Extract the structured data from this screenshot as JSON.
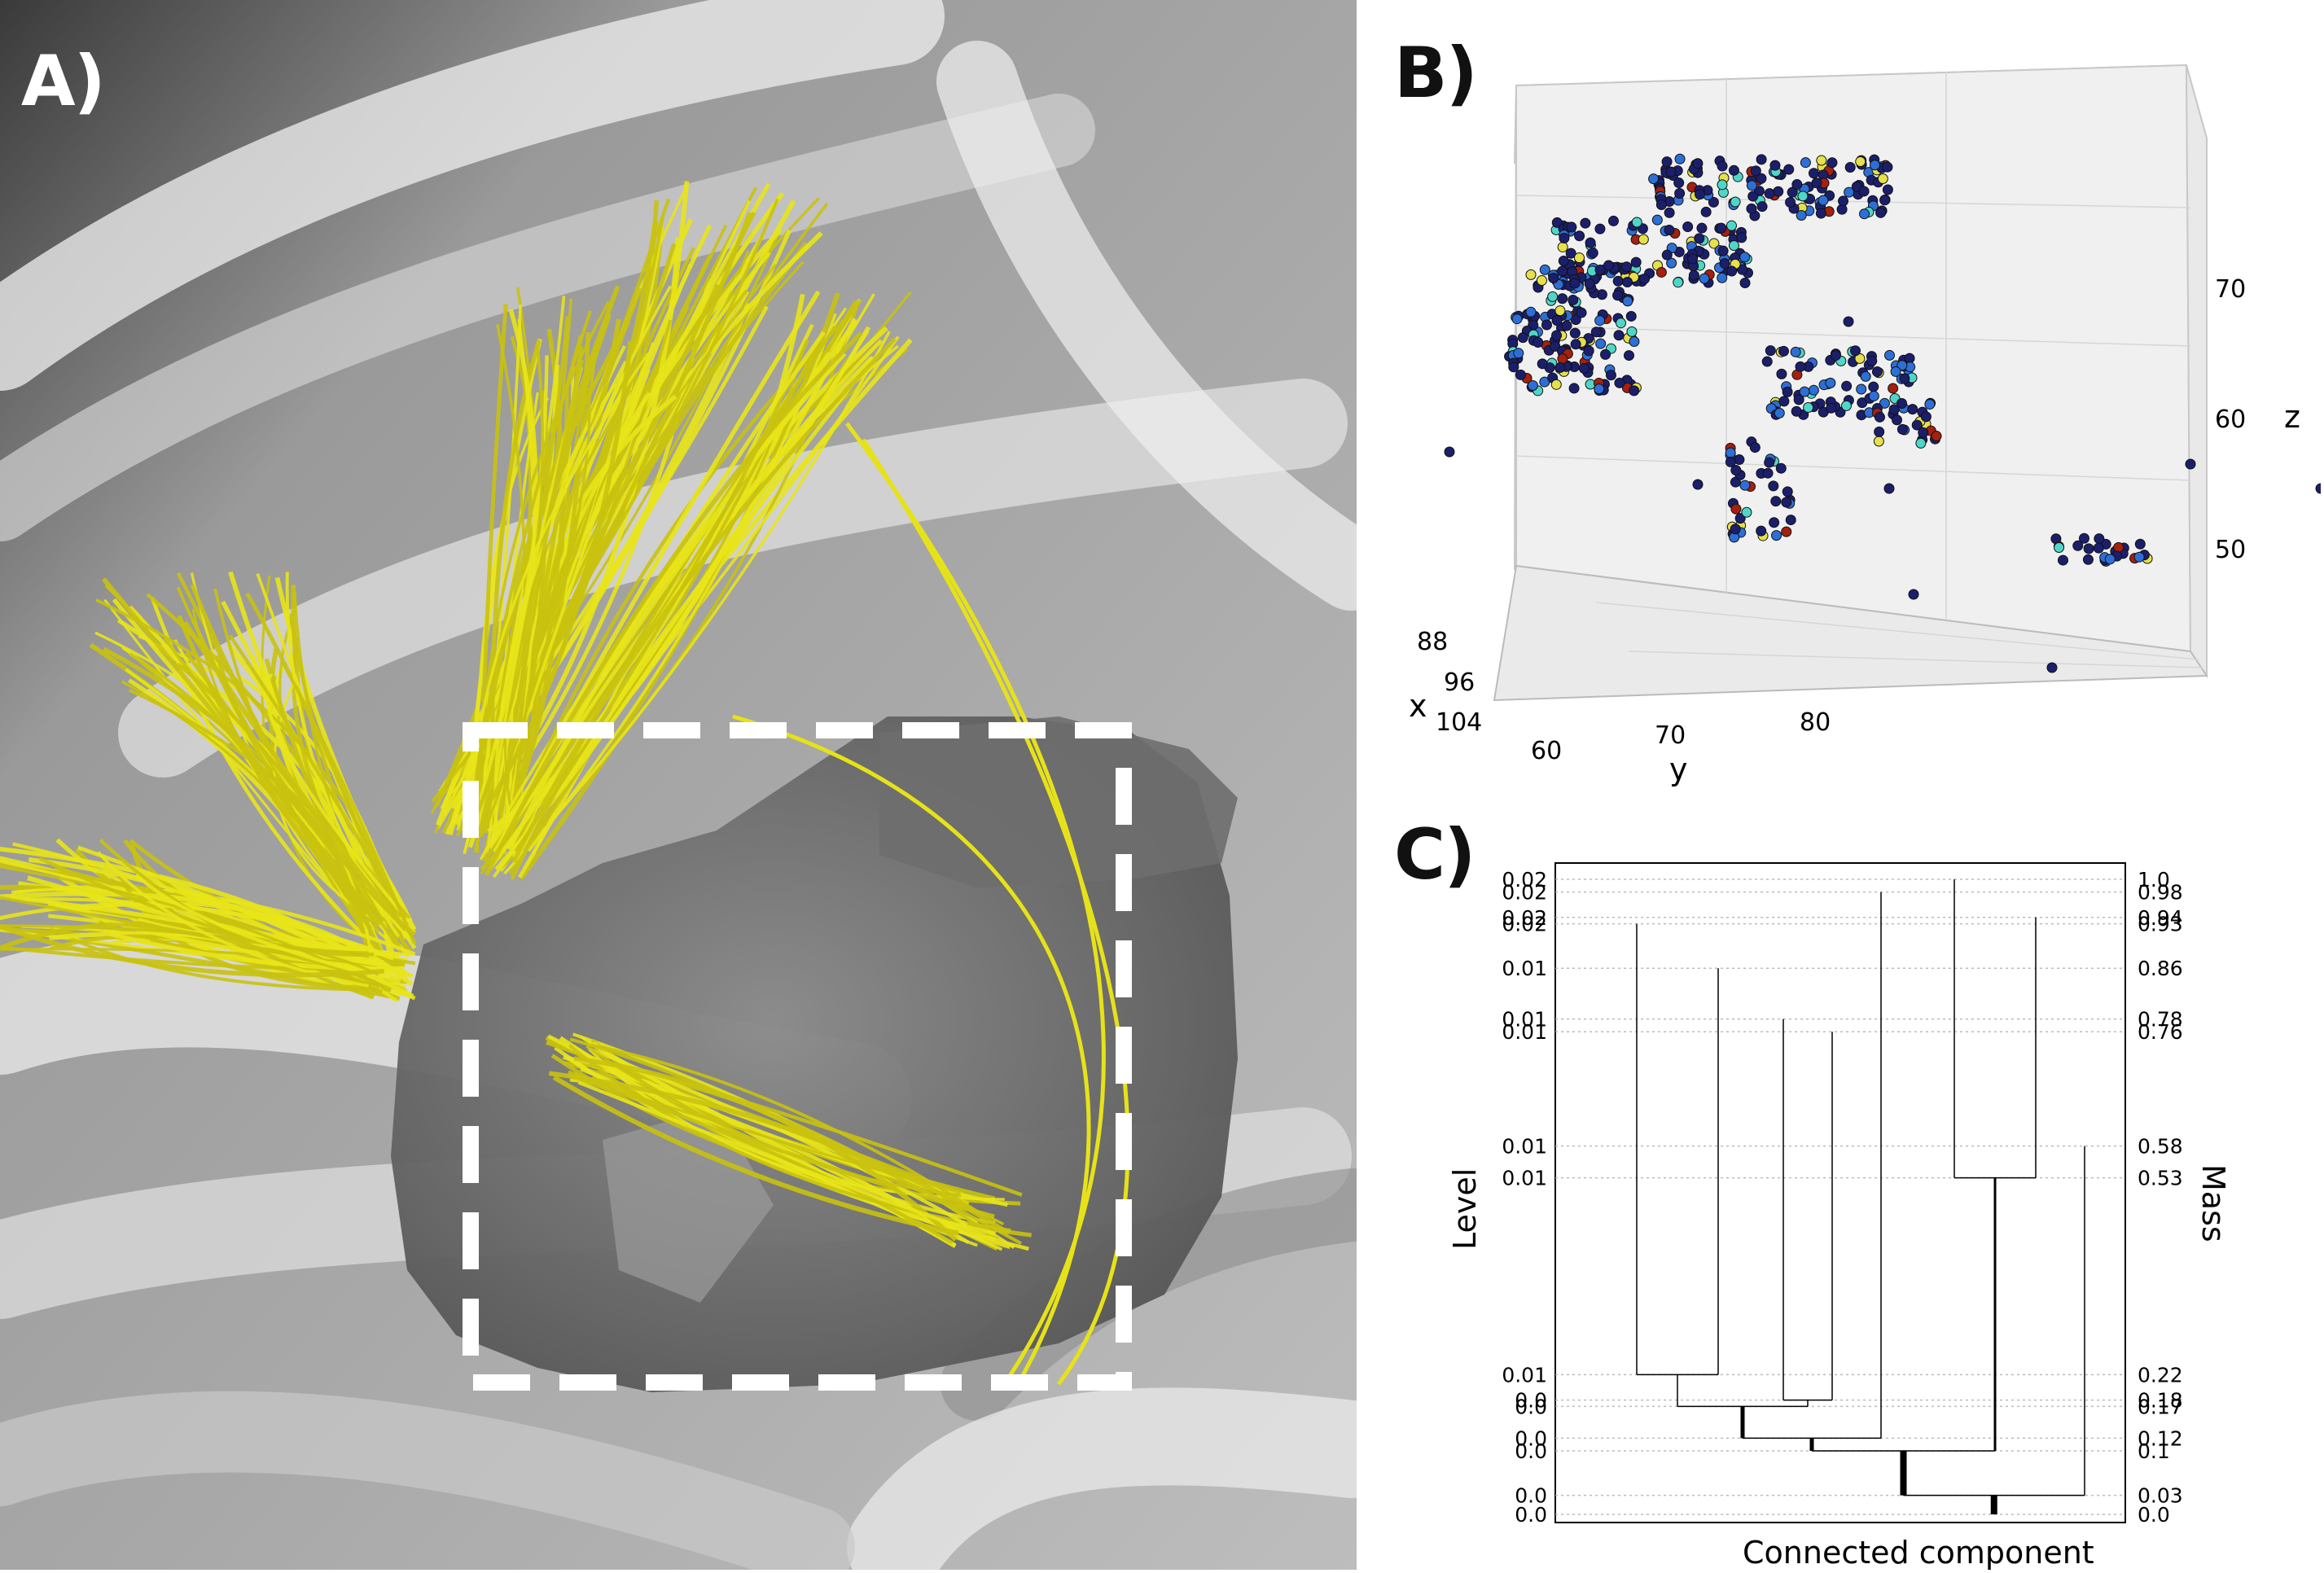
{
  "panel_a": {
    "label": "A)"
  },
  "panel_b": {
    "label": "B)",
    "axes": {
      "x": {
        "label": "x",
        "ticks": [
          "88",
          "96",
          "104"
        ]
      },
      "y": {
        "label": "y",
        "ticks": [
          "60",
          "70",
          "80"
        ]
      },
      "z": {
        "label": "z",
        "ticks": [
          "70",
          "60",
          "50"
        ]
      }
    },
    "colors": {
      "low": "#1b1f6b",
      "mid": "#2d6fd6",
      "cyan": "#4fd6c8",
      "yellow": "#e6e04a",
      "high": "#a5200e"
    }
  },
  "panel_c": {
    "label": "C)",
    "chart_data": {
      "type": "dendrogram",
      "xlabel": "Connected component",
      "ylabel_left": "Level",
      "ylabel_right": "Mass",
      "left_ticks": [
        "0.02",
        "0.02",
        "0.02",
        "0.02",
        "0.01",
        "0.01",
        "0.01",
        "0.01",
        "0.01",
        "0.01",
        "0.0",
        "0.0",
        "0.0",
        "0.0",
        "0.0",
        "0.0"
      ],
      "right_ticks": [
        "1.0",
        "0.98",
        "0.94",
        "0.93",
        "0.86",
        "0.78",
        "0.76",
        "0.58",
        "0.53",
        "0.22",
        "0.18",
        "0.17",
        "0.12",
        "0.1",
        "0.03",
        "0.0"
      ],
      "mass_levels": [
        1.0,
        0.98,
        0.94,
        0.93,
        0.86,
        0.78,
        0.76,
        0.58,
        0.53,
        0.22,
        0.18,
        0.17,
        0.12,
        0.1,
        0.03,
        0.0
      ]
    }
  }
}
